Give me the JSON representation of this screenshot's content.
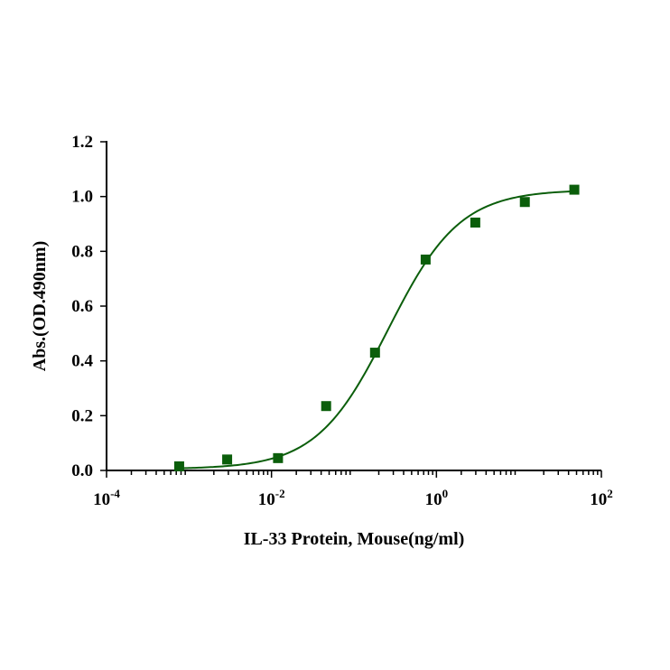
{
  "chart_data": {
    "type": "scatter",
    "xlabel": "IL-33 Protein, Mouse(ng/ml)",
    "ylabel": "Abs.(OD.490nm)",
    "x_scale": "log10",
    "xlim": [
      0.0001,
      100
    ],
    "ylim": [
      0,
      1.2
    ],
    "x_ticks": [
      {
        "base": "10",
        "exp": "-4",
        "value": 0.0001
      },
      {
        "base": "10",
        "exp": "-2",
        "value": 0.01
      },
      {
        "base": "10",
        "exp": "0",
        "value": 1
      },
      {
        "base": "10",
        "exp": "2",
        "value": 100
      }
    ],
    "y_ticks": [
      {
        "label": "0.0",
        "value": 0.0
      },
      {
        "label": "0.2",
        "value": 0.2
      },
      {
        "label": "0.4",
        "value": 0.4
      },
      {
        "label": "0.6",
        "value": 0.6
      },
      {
        "label": "0.8",
        "value": 0.8
      },
      {
        "label": "1.0",
        "value": 1.0
      },
      {
        "label": "1.2",
        "value": 1.2
      }
    ],
    "series": [
      {
        "marker": "square",
        "color": "#0b5e0b",
        "x": [
          0.00076,
          0.0029,
          0.012,
          0.046,
          0.18,
          0.74,
          2.96,
          11.8,
          47
        ],
        "y": [
          0.015,
          0.04,
          0.045,
          0.235,
          0.43,
          0.77,
          0.905,
          0.98,
          1.025
        ]
      }
    ],
    "fit_curve": {
      "type": "4PL",
      "color": "#0b5e0b",
      "bottom": 0.005,
      "top": 1.025,
      "ec50": 0.26,
      "hill": 1.0
    },
    "grid": false,
    "legend": "none"
  }
}
